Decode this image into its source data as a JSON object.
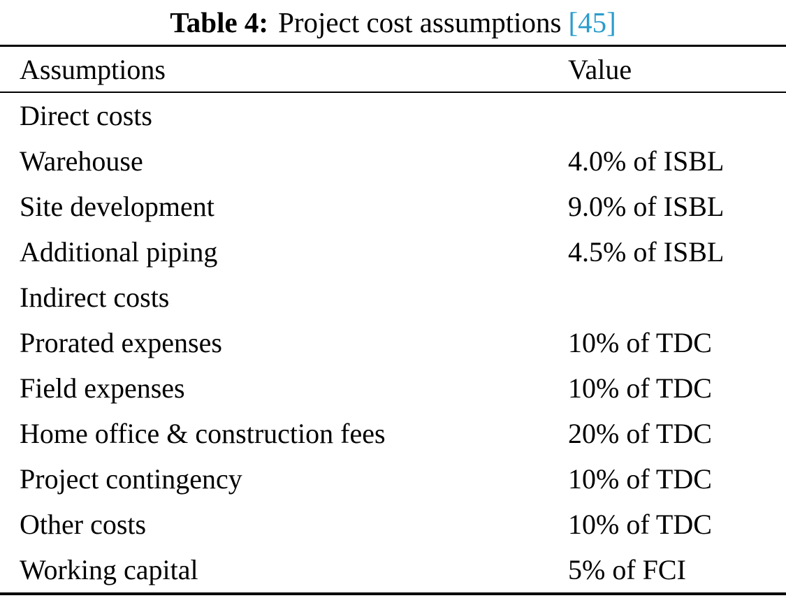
{
  "caption": {
    "label": "Table 4:",
    "title": "Project cost assumptions",
    "citation": "[45]"
  },
  "colors": {
    "citation_link": "#2b9ccd",
    "text": "#000000",
    "background": "#ffffff"
  },
  "table": {
    "headers": [
      "Assumptions",
      "Value"
    ],
    "rows": [
      {
        "assumption": "Direct costs",
        "value": ""
      },
      {
        "assumption": "Warehouse",
        "value": "4.0% of ISBL"
      },
      {
        "assumption": "Site development",
        "value": "9.0% of ISBL"
      },
      {
        "assumption": "Additional piping",
        "value": "4.5% of ISBL"
      },
      {
        "assumption": "Indirect costs",
        "value": ""
      },
      {
        "assumption": "Prorated expenses",
        "value": "10% of TDC"
      },
      {
        "assumption": "Field expenses",
        "value": "10% of TDC"
      },
      {
        "assumption": "Home office & construction fees",
        "value": "20% of TDC"
      },
      {
        "assumption": "Project contingency",
        "value": "10% of TDC"
      },
      {
        "assumption": "Other costs",
        "value": "10% of TDC"
      },
      {
        "assumption": "Working capital",
        "value": "5% of FCI"
      }
    ]
  }
}
